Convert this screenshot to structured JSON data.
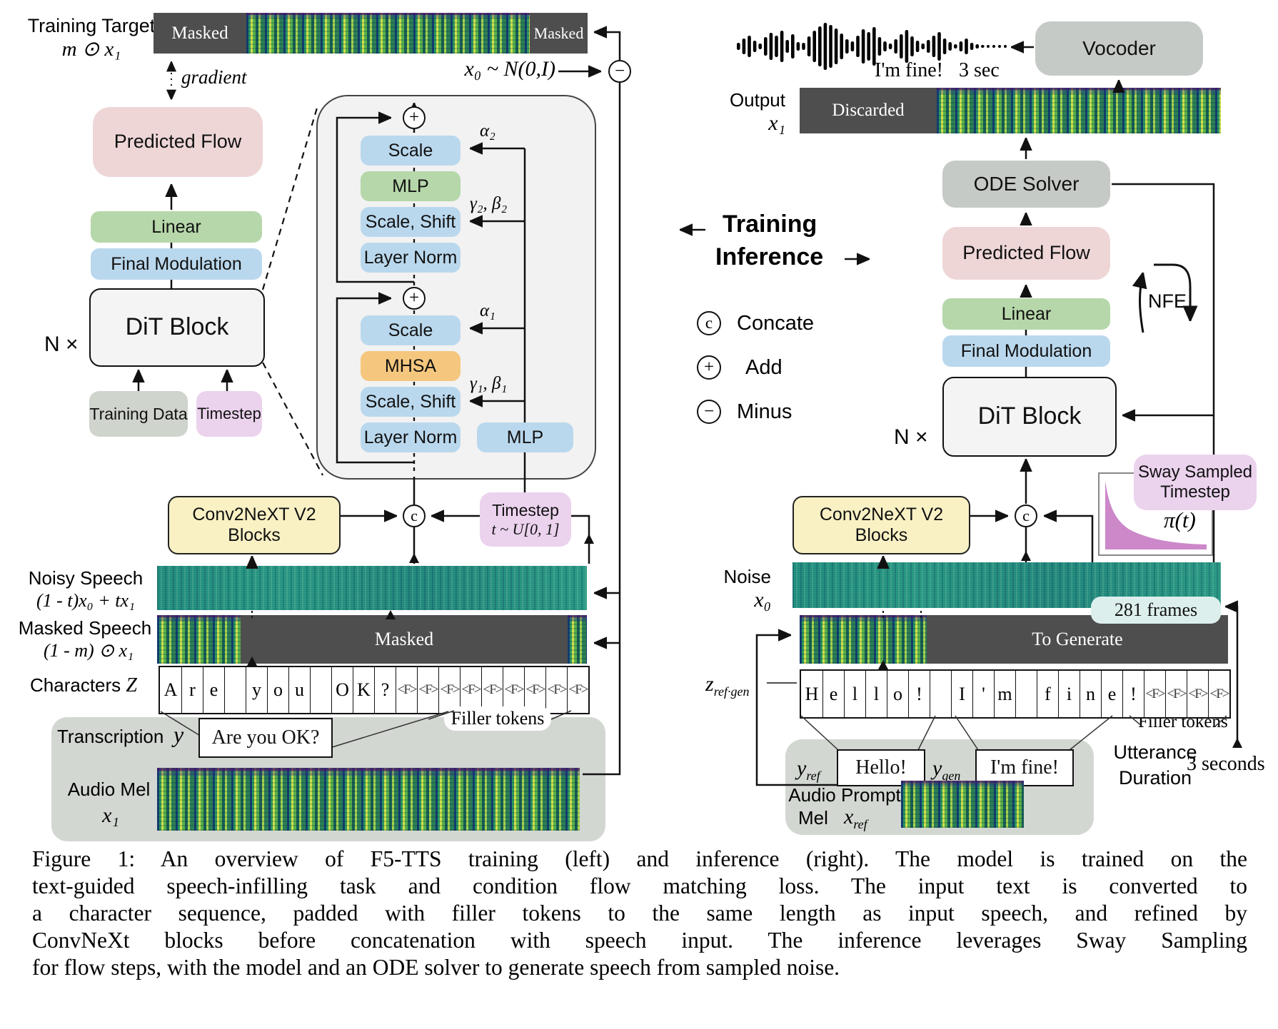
{
  "symbols": {
    "plus": "+",
    "minus": "−",
    "concat": "c"
  },
  "left": {
    "target_label": "Training Target",
    "target_math": "m ⊙ x₁",
    "masked_left": "Masked",
    "masked_right": "Masked",
    "masked_bar": "Masked",
    "gradient": "gradient",
    "x0_dist": "x₀ ~ N(0,I)",
    "predicted_flow": "Predicted Flow",
    "linear": "Linear",
    "final_modulation": "Final Modulation",
    "dit_block": "DiT Block",
    "n_times": "N ×",
    "training_data": "Training Data",
    "timestep": "Timestep",
    "detail": {
      "scale_top": "Scale",
      "alpha2": "α₂",
      "mlp": "MLP",
      "scale_shift_top": "Scale, Shift",
      "gamma_beta2": "γ₂, β₂",
      "layer_norm_top": "Layer Norm",
      "scale_bottom": "Scale",
      "alpha1": "α₁",
      "mhsa": "MHSA",
      "scale_shift_bottom": "Scale, Shift",
      "gamma_beta1": "γ₁, β₁",
      "layer_norm_bottom": "Layer Norm",
      "mlp_side": "MLP"
    },
    "conv_line1": "Conv2NeXT V2",
    "conv_line2": "Blocks",
    "timestep_box_line1": "Timestep",
    "timestep_box_line2": "t ~ U[0, 1]",
    "noisy_label": "Noisy Speech",
    "noisy_math": "(1 - t)x₀ + tx₁",
    "masked_label": "Masked Speech",
    "masked_math": "(1 - m) ⊙ x₁",
    "characters_label": "Characters",
    "characters_math": "Z",
    "chars": [
      "A",
      "r",
      "e",
      "",
      "y",
      "o",
      "u",
      "",
      "O",
      "K",
      "?",
      "<F>",
      "<F>",
      "<F>",
      "<F>",
      "<F>",
      "<F>",
      "<F>",
      "<F>",
      "<F>"
    ],
    "filler_label": "Filler tokens",
    "transcription_label": "Transcription",
    "transcription_math": "y",
    "transcription_text": "Are you OK?",
    "audio_mel_label": "Audio Mel",
    "audio_mel_math": "x₁"
  },
  "right": {
    "im_fine": "I'm fine!",
    "three_sec": "3 sec",
    "vocoder": "Vocoder",
    "output_label": "Output",
    "output_math": "x₁",
    "discarded": "Discarded",
    "ode_solver": "ODE Solver",
    "predicted_flow": "Predicted Flow",
    "linear": "Linear",
    "final_modulation": "Final Modulation",
    "dit_block": "DiT Block",
    "n_times": "N ×",
    "nfe": "NFE",
    "sway_line1": "Sway Sampled",
    "sway_line2": "Timestep",
    "pi": "π(t)",
    "conv_line1": "Conv2NeXT V2",
    "conv_line2": "Blocks",
    "noise_label": "Noise",
    "noise_math": "x₀",
    "frames": "281 frames",
    "to_generate": "To Generate",
    "chars": [
      "H",
      "e",
      "l",
      "l",
      "o",
      "!",
      "",
      "I",
      "'",
      "m",
      "",
      "f",
      "i",
      "n",
      "e",
      "!",
      "<F>",
      "<F>",
      "<F>",
      "<F>"
    ],
    "z_main": "z",
    "z_sub": "ref·gen",
    "filler_label": "Filler tokens",
    "yref_main": "y",
    "yref_sub": "ref",
    "hello": "Hello!",
    "ygen_main": "y",
    "ygen_sub": "gen",
    "imfine_box": "I'm fine!",
    "audio_prompt_line1": "Audio Prompt",
    "audio_prompt_line2": "Mel",
    "xref_main": "x",
    "xref_sub": "ref",
    "utterance_line1": "Utterance",
    "utterance_line2": "Duration",
    "seconds": "3 seconds"
  },
  "legend": {
    "training": "Training",
    "inference": "Inference",
    "concate": "Concate",
    "add": "Add",
    "minus": "Minus"
  },
  "caption": {
    "line1": "Figure 1: An overview of F5-TTS training (left) and inference (right). The model is trained on the",
    "line2": "text-guided speech-infilling task and condition flow matching loss. The input text is converted to",
    "line3": "a character sequence, padded with filler tokens to the same length as input speech, and refined by",
    "line4": "ConvNeXt blocks before concatenation with speech input. The inference leverages Sway Sampling",
    "line5": "for flow steps, with the model and an ODE solver to generate speech from sampled noise."
  }
}
